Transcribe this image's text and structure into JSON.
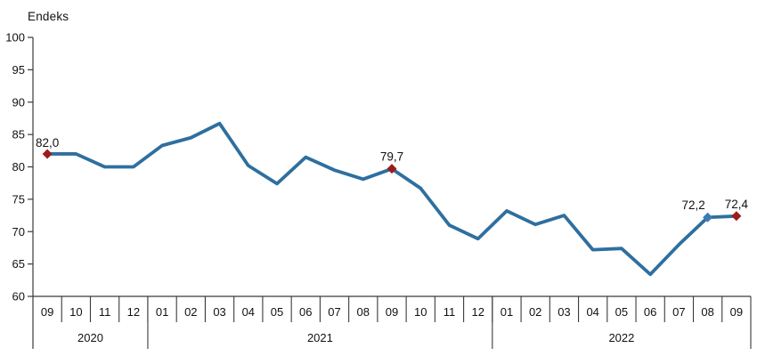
{
  "chart_data": {
    "type": "line",
    "title": "Endeks",
    "ylabel": "Endeks",
    "xlabel": "",
    "ylim": [
      60,
      100
    ],
    "yticks": [
      60,
      65,
      70,
      75,
      80,
      85,
      90,
      95,
      100
    ],
    "grid": false,
    "legend": "none",
    "x_groups": [
      {
        "year": "2020",
        "months": [
          "09",
          "10",
          "11",
          "12"
        ]
      },
      {
        "year": "2021",
        "months": [
          "01",
          "02",
          "03",
          "04",
          "05",
          "06",
          "07",
          "08",
          "09",
          "10",
          "11",
          "12"
        ]
      },
      {
        "year": "2022",
        "months": [
          "01",
          "02",
          "03",
          "04",
          "05",
          "06",
          "07",
          "08",
          "09"
        ]
      }
    ],
    "values": [
      82.0,
      82.0,
      80.0,
      80.0,
      83.3,
      84.5,
      86.7,
      80.2,
      77.4,
      81.5,
      79.5,
      78.1,
      79.7,
      76.7,
      71.0,
      68.9,
      73.2,
      71.1,
      72.5,
      67.2,
      67.4,
      63.4,
      68.0,
      72.2,
      72.4
    ],
    "annotations": [
      {
        "index": 0,
        "label": "82,0",
        "marker": "red",
        "align": "left"
      },
      {
        "index": 12,
        "label": "79,7",
        "marker": "red",
        "align": "center"
      },
      {
        "index": 23,
        "label": "72,2",
        "marker": "blue",
        "align": "left-of"
      },
      {
        "index": 24,
        "label": "72,4",
        "marker": "red",
        "align": "center"
      }
    ],
    "colors": {
      "line": "#2E6F9F",
      "marker_red": "#9E1B1B",
      "marker_blue": "#3B7CB5",
      "axis": "#3a3a3a",
      "text": "#111111"
    }
  }
}
